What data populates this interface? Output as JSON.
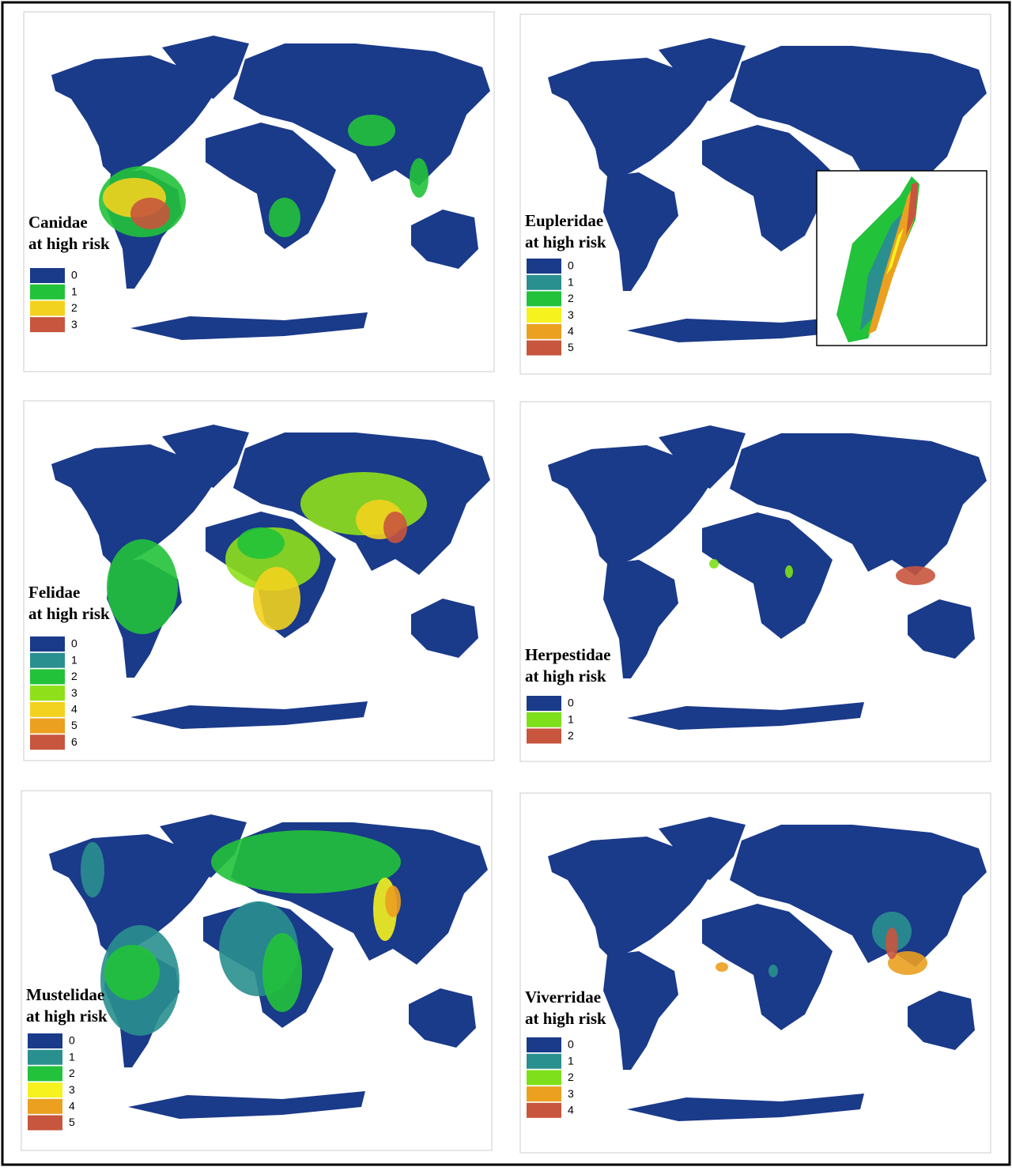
{
  "panels": [
    {
      "title": [
        "Canidae",
        "at high risk"
      ],
      "legend": [
        {
          "label": "0",
          "color": "#1a3a8a"
        },
        {
          "label": "1",
          "color": "#22c23a"
        },
        {
          "label": "2",
          "color": "#f2d21e"
        },
        {
          "label": "3",
          "color": "#c8553d"
        }
      ]
    },
    {
      "title": [
        "Eupleridae",
        "at high risk"
      ],
      "legend": [
        {
          "label": "0",
          "color": "#1a3a8a"
        },
        {
          "label": "1",
          "color": "#2a8f8f"
        },
        {
          "label": "2",
          "color": "#22c23a"
        },
        {
          "label": "3",
          "color": "#f5f21e"
        },
        {
          "label": "4",
          "color": "#eba020"
        },
        {
          "label": "5",
          "color": "#c8553d"
        }
      ]
    },
    {
      "title": [
        "Felidae",
        "at high risk"
      ],
      "legend": [
        {
          "label": "0",
          "color": "#1a3a8a"
        },
        {
          "label": "1",
          "color": "#2a8f8f"
        },
        {
          "label": "2",
          "color": "#22c23a"
        },
        {
          "label": "3",
          "color": "#8fe01a"
        },
        {
          "label": "4",
          "color": "#f2d21e"
        },
        {
          "label": "5",
          "color": "#eba020"
        },
        {
          "label": "6",
          "color": "#c8553d"
        }
      ]
    },
    {
      "title": [
        "Herpestidae",
        "at high risk"
      ],
      "legend": [
        {
          "label": "0",
          "color": "#1a3a8a"
        },
        {
          "label": "1",
          "color": "#7ee01a"
        },
        {
          "label": "2",
          "color": "#c8553d"
        }
      ]
    },
    {
      "title": [
        "Mustelidae",
        "at high risk"
      ],
      "legend": [
        {
          "label": "0",
          "color": "#1a3a8a"
        },
        {
          "label": "1",
          "color": "#2a8f8f"
        },
        {
          "label": "2",
          "color": "#22c23a"
        },
        {
          "label": "3",
          "color": "#f5f21e"
        },
        {
          "label": "4",
          "color": "#eba020"
        },
        {
          "label": "5",
          "color": "#c8553d"
        }
      ]
    },
    {
      "title": [
        "Viverridae",
        "at high risk"
      ],
      "legend": [
        {
          "label": "0",
          "color": "#1a3a8a"
        },
        {
          "label": "1",
          "color": "#2a8f8f"
        },
        {
          "label": "2",
          "color": "#7ee01a"
        },
        {
          "label": "3",
          "color": "#eba020"
        },
        {
          "label": "4",
          "color": "#c8553d"
        }
      ]
    }
  ]
}
